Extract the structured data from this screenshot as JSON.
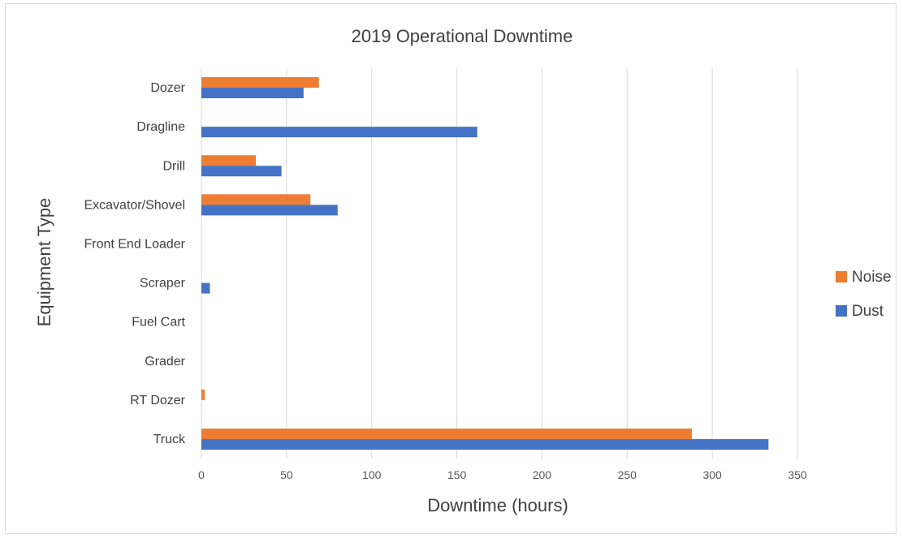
{
  "chart_data": {
    "type": "bar",
    "orientation": "horizontal",
    "title": "2019 Operational Downtime",
    "xlabel": "Downtime (hours)",
    "ylabel": "Equipment Type",
    "categories": [
      "Dozer",
      "Dragline",
      "Drill",
      "Excavator/Shovel",
      "Front End Loader",
      "Scraper",
      "Fuel Cart",
      "Grader",
      "RT Dozer",
      "Truck"
    ],
    "series": [
      {
        "name": "Noise",
        "color": "#ED7D31",
        "values": [
          69,
          0,
          32,
          64,
          0,
          0,
          0,
          0,
          2,
          288
        ]
      },
      {
        "name": "Dust",
        "color": "#4472C4",
        "values": [
          60,
          162,
          47,
          80,
          0,
          5,
          0,
          0,
          0,
          333
        ]
      }
    ],
    "xlim": [
      0,
      350
    ],
    "xticks": [
      0,
      50,
      100,
      150,
      200,
      250,
      300,
      350
    ],
    "grid": "vertical",
    "legend_position": "right"
  }
}
